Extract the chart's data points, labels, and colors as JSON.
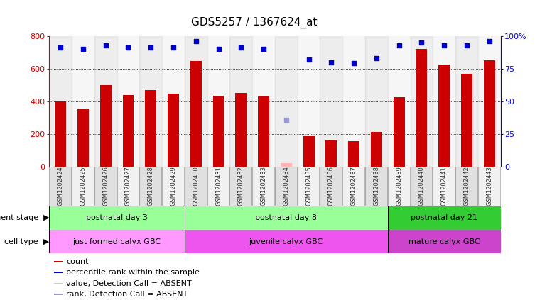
{
  "title": "GDS5257 / 1367624_at",
  "samples": [
    "GSM1202424",
    "GSM1202425",
    "GSM1202426",
    "GSM1202427",
    "GSM1202428",
    "GSM1202429",
    "GSM1202430",
    "GSM1202431",
    "GSM1202432",
    "GSM1202433",
    "GSM1202434",
    "GSM1202435",
    "GSM1202436",
    "GSM1202437",
    "GSM1202438",
    "GSM1202439",
    "GSM1202440",
    "GSM1202441",
    "GSM1202442",
    "GSM1202443"
  ],
  "counts": [
    400,
    355,
    500,
    440,
    470,
    445,
    645,
    435,
    450,
    430,
    20,
    185,
    165,
    155,
    210,
    425,
    720,
    625,
    570,
    650
  ],
  "percentile_ranks": [
    91,
    90,
    93,
    91,
    91,
    91,
    96,
    90,
    91,
    90,
    null,
    82,
    80,
    79,
    83,
    93,
    95,
    93,
    93,
    96
  ],
  "absent_mask": [
    false,
    false,
    false,
    false,
    false,
    false,
    false,
    false,
    false,
    false,
    true,
    false,
    false,
    false,
    false,
    false,
    false,
    false,
    false,
    false
  ],
  "absent_count_val": 20,
  "absent_rank_pct": 36,
  "bar_color": "#cc0000",
  "absent_bar_color": "#ffb3b3",
  "dot_color": "#0000cc",
  "absent_dot_color": "#9999cc",
  "ylim_left": [
    0,
    800
  ],
  "ylim_right": [
    0,
    100
  ],
  "yticks_left": [
    0,
    200,
    400,
    600,
    800
  ],
  "yticks_right": [
    0,
    25,
    50,
    75,
    100
  ],
  "groups": [
    {
      "label": "postnatal day 3",
      "start": 0,
      "end": 6,
      "color": "#99ff99"
    },
    {
      "label": "postnatal day 8",
      "start": 6,
      "end": 15,
      "color": "#99ff99"
    },
    {
      "label": "postnatal day 21",
      "start": 15,
      "end": 20,
      "color": "#33cc33"
    }
  ],
  "cell_groups": [
    {
      "label": "just formed calyx GBC",
      "start": 0,
      "end": 6,
      "color": "#ff99ff"
    },
    {
      "label": "juvenile calyx GBC",
      "start": 6,
      "end": 15,
      "color": "#ee55ee"
    },
    {
      "label": "mature calyx GBC",
      "start": 15,
      "end": 20,
      "color": "#cc44cc"
    }
  ],
  "dev_stage_label": "development stage",
  "cell_type_label": "cell type",
  "legend_items": [
    {
      "label": "count",
      "color": "#cc0000"
    },
    {
      "label": "percentile rank within the sample",
      "color": "#0000cc"
    },
    {
      "label": "value, Detection Call = ABSENT",
      "color": "#ffb3b3"
    },
    {
      "label": "rank, Detection Call = ABSENT",
      "color": "#9999cc"
    }
  ],
  "col_bg_even": "#cccccc",
  "col_bg_odd": "#e8e8e8",
  "bg_color": "#ffffff"
}
